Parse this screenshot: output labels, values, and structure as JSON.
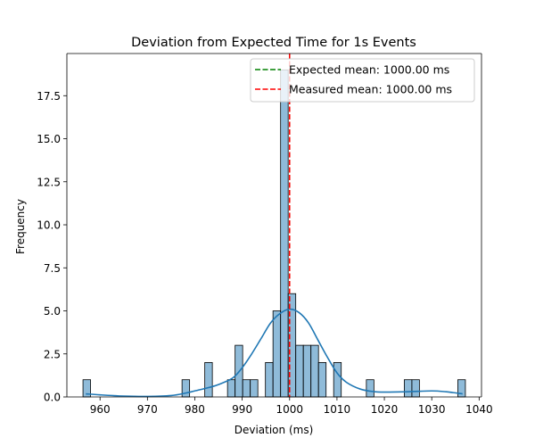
{
  "chart_data": {
    "type": "bar",
    "title": "Deviation from Expected Time for 1s Events",
    "xlabel": "Deviation (ms)",
    "ylabel": "Frequency",
    "xlim": [
      953,
      1040.5
    ],
    "ylim": [
      0,
      19.95
    ],
    "xticks": [
      960,
      970,
      980,
      990,
      1000,
      1010,
      1020,
      1030,
      1040
    ],
    "yticks": [
      0.0,
      2.5,
      5.0,
      7.5,
      10.0,
      12.5,
      15.0,
      17.5
    ],
    "ytick_labels": [
      "0.0",
      "2.5",
      "5.0",
      "7.5",
      "10.0",
      "12.5",
      "15.0",
      "17.5"
    ],
    "grid": false,
    "legend_position": "top-right",
    "bar_color": "#1f77b4",
    "bar_alpha": 0.5,
    "bin_width": 1.6,
    "bins": [
      {
        "x0": 956.4,
        "count": 1
      },
      {
        "x0": 977.3,
        "count": 1
      },
      {
        "x0": 982.1,
        "count": 2
      },
      {
        "x0": 986.9,
        "count": 1
      },
      {
        "x0": 988.5,
        "count": 3
      },
      {
        "x0": 990.1,
        "count": 1
      },
      {
        "x0": 991.7,
        "count": 1
      },
      {
        "x0": 994.9,
        "count": 2
      },
      {
        "x0": 996.5,
        "count": 5
      },
      {
        "x0": 998.1,
        "count": 19
      },
      {
        "x0": 999.7,
        "count": 6
      },
      {
        "x0": 1001.3,
        "count": 3
      },
      {
        "x0": 1002.9,
        "count": 3
      },
      {
        "x0": 1004.5,
        "count": 3
      },
      {
        "x0": 1006.1,
        "count": 2
      },
      {
        "x0": 1009.3,
        "count": 2
      },
      {
        "x0": 1016.2,
        "count": 1
      },
      {
        "x0": 1024.2,
        "count": 1
      },
      {
        "x0": 1025.8,
        "count": 1
      },
      {
        "x0": 1035.5,
        "count": 1
      }
    ],
    "kde": {
      "color": "#1f77b4",
      "x": [
        957,
        960,
        965,
        970,
        975,
        978,
        980,
        983,
        985,
        988,
        990,
        992,
        994,
        996,
        998,
        1000,
        1002,
        1004,
        1006,
        1008,
        1010,
        1012,
        1015,
        1018,
        1020,
        1025,
        1030,
        1033,
        1036.5
      ],
      "y": [
        0.18,
        0.12,
        0.05,
        0.03,
        0.08,
        0.22,
        0.35,
        0.55,
        0.72,
        1.1,
        1.7,
        2.5,
        3.4,
        4.3,
        4.85,
        5.1,
        4.9,
        4.3,
        3.3,
        2.3,
        1.4,
        0.85,
        0.45,
        0.3,
        0.28,
        0.3,
        0.35,
        0.3,
        0.18
      ]
    },
    "lines": [
      {
        "name": "Expected mean: 1000.00 ms",
        "x": 1000.0,
        "color": "#008000",
        "style": "dashed"
      },
      {
        "name": "Measured mean: 1000.00 ms",
        "x": 1000.0,
        "color": "#ff0000",
        "style": "dashed"
      }
    ]
  }
}
